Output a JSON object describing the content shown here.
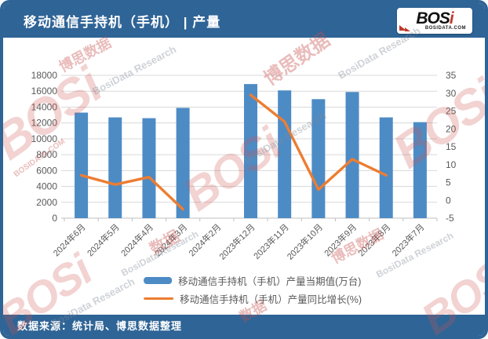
{
  "header": {
    "title": "移动通信手持机（手机） | 产量",
    "logo_text": "BOS",
    "logo_text_dot": "i",
    "logo_site": "BOSIDATA.COM"
  },
  "footer": {
    "source": "数据来源：统计局、博思数据整理"
  },
  "watermarks": {
    "brand": "BOSi",
    "brand_cn": "博思数据",
    "research": "BosiData Research",
    "site": "BOSIDATA.COM",
    "data_cn": "数据"
  },
  "chart_data": {
    "type": "bar",
    "title": "移动通信手持机（手机） | 产量",
    "categories": [
      "2024年6月",
      "2024年5月",
      "2024年4月",
      "2024年3月",
      "2024年2月",
      "2023年12月",
      "2023年11月",
      "2023年10月",
      "2023年9月",
      "2023年8月",
      "2023年7月"
    ],
    "series": [
      {
        "name": "移动通信手持机（手机）产量当期值(万台)",
        "type": "bar",
        "axis": "left",
        "color": "#4d8bc5",
        "values": [
          13300,
          12700,
          12600,
          13900,
          null,
          16900,
          16100,
          15000,
          15900,
          12700,
          12100
        ]
      },
      {
        "name": "移动通信手持机（手机）产量同比增长(%)",
        "type": "line",
        "axis": "right",
        "color": "#ed7d31",
        "values": [
          7,
          4.4,
          6.5,
          -2.5,
          null,
          29.5,
          22,
          3,
          11.5,
          7,
          null
        ]
      }
    ],
    "left_axis": {
      "min": 0,
      "max": 18000,
      "step": 2000
    },
    "right_axis": {
      "min": -5,
      "max": 35,
      "step": 5
    },
    "grid": true,
    "legend_position": "bottom"
  }
}
